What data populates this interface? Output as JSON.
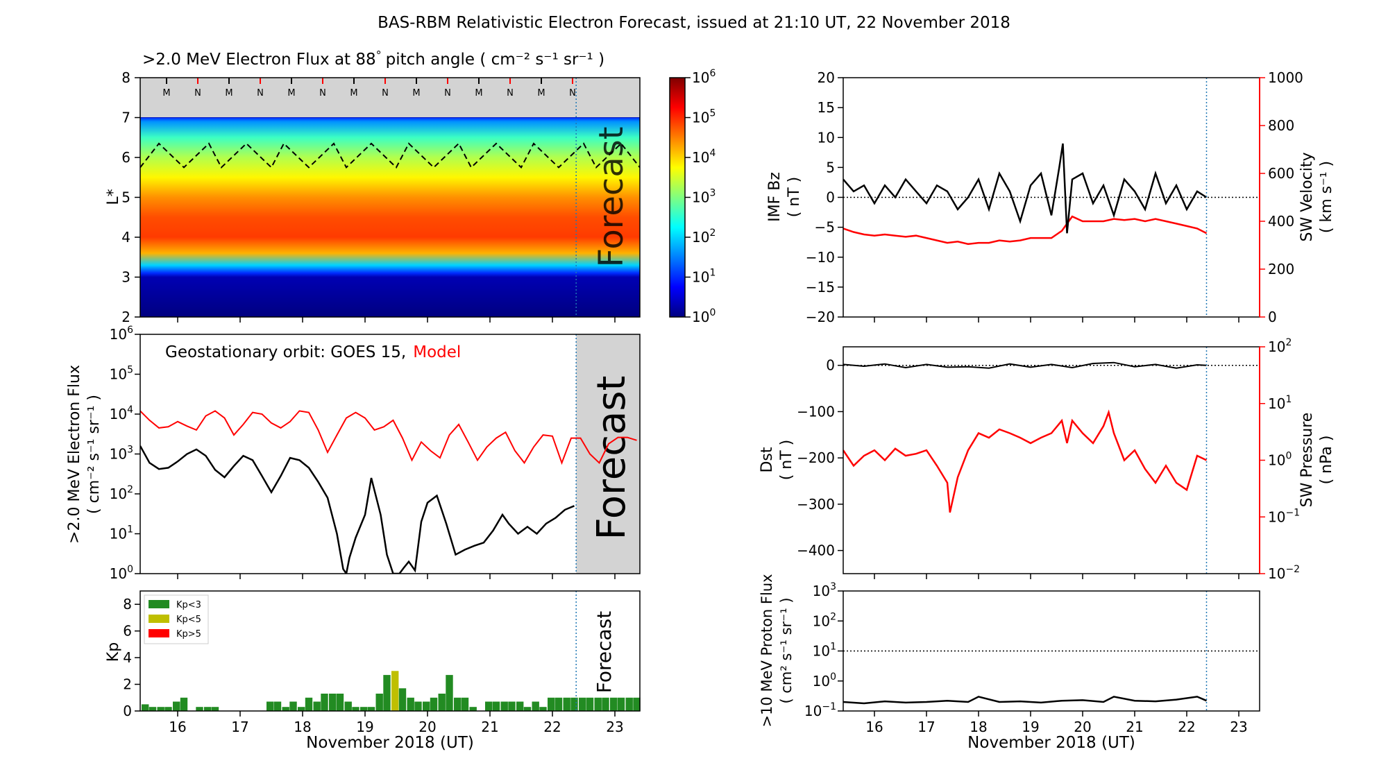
{
  "title": "BAS-RBM Relativistic Electron Forecast, issued at 21:10 UT, 22 November 2018",
  "colors": {
    "model": "#ff0000",
    "observed": "#000000",
    "forecast_shade": "#d3d3d3",
    "forecast_line": "#1f77b4",
    "kp_lt3": "#228B22",
    "kp_lt5": "#bfbf00",
    "kp_gt5": "#ff0000"
  },
  "xaxis": {
    "label": "November 2018 (UT)",
    "range": [
      15.4,
      23.4
    ],
    "ticks": [
      "16",
      "17",
      "18",
      "19",
      "20",
      "21",
      "22",
      "23"
    ],
    "forecast_start": 22.38
  },
  "panels": {
    "flux_map": {
      "title": ">2.0 MeV Electron Flux at 88",
      "title_units": "pitch angle ( cm⁻² s⁻¹ sr⁻¹ )",
      "degree": "°",
      "ylabel": "L*",
      "ylim": [
        2,
        8
      ],
      "yticks": [
        "2",
        "3",
        "4",
        "5",
        "6",
        "7",
        "8"
      ],
      "forecast_label": "Forecast",
      "mn_markers": [
        "M",
        "N",
        "M",
        "N",
        "M",
        "N",
        "M",
        "N",
        "M",
        "N",
        "M",
        "N",
        "M",
        "N"
      ],
      "colorbar": {
        "ticks": [
          "10",
          "10",
          "10",
          "10",
          "10",
          "10",
          "10"
        ],
        "exponents": [
          "0",
          "1",
          "2",
          "3",
          "4",
          "5",
          "6"
        ]
      }
    },
    "geo_flux": {
      "ylabel_line1": ">2.0 MeV Electron Flux",
      "ylabel_line2": "( cm⁻² s⁻¹ sr⁻¹ )",
      "legend_prefix": "Geostationary orbit:   GOES 15,",
      "legend_model": "Model",
      "forecast_label": "Forecast",
      "ytick_base": "10",
      "ytick_exponents": [
        "0",
        "1",
        "2",
        "3",
        "4",
        "5",
        "6"
      ]
    },
    "kp": {
      "ylabel": "Kp",
      "yticks": [
        "0",
        "2",
        "4",
        "6",
        "8"
      ],
      "forecast_label": "Forecast",
      "legend": [
        "Kp<3",
        "Kp<5",
        "Kp>5"
      ]
    },
    "imf": {
      "ylabel_line1": "IMF Bz",
      "ylabel_line2": "( nT )",
      "yticks": [
        "−20",
        "−15",
        "−10",
        "−5",
        "0",
        "5",
        "10",
        "15",
        "20"
      ],
      "ylabel_right_line1": "SW Velocity",
      "ylabel_right_line2": "( km s⁻¹ )",
      "yticks_right": [
        "0",
        "200",
        "400",
        "600",
        "800",
        "1000"
      ]
    },
    "dst": {
      "ylabel_line1": "Dst",
      "ylabel_line2": "( nT )",
      "yticks": [
        "−400",
        "−300",
        "−200",
        "−100",
        "0"
      ],
      "ylabel_right_line1": "SW Pressure",
      "ylabel_right_line2": "( nPa )",
      "ytick_right_base": "10",
      "ytick_right_exponents": [
        "−2",
        "−1",
        "0",
        "1",
        "2"
      ]
    },
    "proton": {
      "ylabel_line1": ">10 MeV Proton Flux",
      "ylabel_line2": "( cm² s⁻¹ sr⁻¹ )",
      "ytick_base": "10",
      "ytick_exponents": [
        "−1",
        "0",
        "1",
        "2",
        "3"
      ]
    }
  },
  "chart_data": [
    {
      "type": "heatmap",
      "title": ">2.0 MeV Electron Flux at 88° pitch angle ( cm⁻² s⁻¹ sr⁻¹ )",
      "ylabel": "L*",
      "xlabel": "November 2018 (UT)",
      "xlim": [
        15.4,
        23.4
      ],
      "ylim": [
        2,
        8
      ],
      "clim_log10": [
        0,
        6
      ],
      "log10_flux_profile": {
        "L": [
          2.0,
          3.0,
          3.1,
          3.3,
          3.6,
          4.0,
          4.5,
          5.0,
          5.5,
          6.0,
          6.5,
          6.9,
          7.0
        ],
        "log10_flux": [
          0.0,
          0.3,
          1.0,
          2.0,
          4.2,
          4.9,
          4.8,
          4.4,
          3.8,
          3.3,
          2.6,
          1.6,
          1.0
        ]
      },
      "no_data_above_L": 7.0,
      "dashed_boundary": {
        "x": [
          15.4,
          15.7,
          16.1,
          16.5,
          16.7,
          17.1,
          17.5,
          17.7,
          18.1,
          18.5,
          18.7,
          19.1,
          19.5,
          19.7,
          20.1,
          20.5,
          20.7,
          21.1,
          21.5,
          21.7,
          22.1,
          22.5,
          22.7,
          23.1,
          23.4
        ],
        "L": [
          5.75,
          6.35,
          5.75,
          6.35,
          5.75,
          6.35,
          5.75,
          6.35,
          5.75,
          6.35,
          5.75,
          6.35,
          5.75,
          6.35,
          5.75,
          6.35,
          5.75,
          6.35,
          5.75,
          6.35,
          5.75,
          6.35,
          5.75,
          6.35,
          5.75
        ]
      }
    },
    {
      "type": "line",
      "ylabel": ">2.0 MeV Electron Flux ( cm⁻² s⁻¹ sr⁻¹ )",
      "yscale": "log",
      "ylim": [
        1,
        1000000
      ],
      "xlim": [
        15.4,
        23.4
      ],
      "series": [
        {
          "name": "Model",
          "x": [
            15.4,
            15.55,
            15.7,
            15.85,
            16.0,
            16.15,
            16.3,
            16.45,
            16.6,
            16.75,
            16.9,
            17.05,
            17.2,
            17.35,
            17.5,
            17.65,
            17.8,
            17.95,
            18.1,
            18.25,
            18.4,
            18.55,
            18.7,
            18.85,
            19.0,
            19.15,
            19.3,
            19.45,
            19.6,
            19.75,
            19.9,
            20.05,
            20.2,
            20.35,
            20.5,
            20.65,
            20.8,
            20.95,
            21.1,
            21.25,
            21.4,
            21.55,
            21.7,
            21.85,
            22.0,
            22.15,
            22.3,
            22.45,
            22.6,
            22.75,
            22.9,
            23.05,
            23.2,
            23.35
          ],
          "y": [
            12000,
            7000,
            4500,
            4800,
            6500,
            5000,
            4000,
            9000,
            12000,
            8000,
            3000,
            5500,
            11000,
            10000,
            6000,
            4500,
            6500,
            12000,
            11000,
            4000,
            1100,
            3000,
            8000,
            11000,
            8000,
            4000,
            4800,
            7000,
            2500,
            700,
            2000,
            1200,
            800,
            3000,
            5500,
            2000,
            700,
            1500,
            2500,
            3500,
            1200,
            600,
            1500,
            3000,
            2800,
            600,
            2500,
            2500,
            1000,
            600,
            1800,
            2600,
            2600,
            2200
          ]
        },
        {
          "name": "GOES 15",
          "x": [
            15.4,
            15.55,
            15.7,
            15.85,
            16.0,
            16.15,
            16.3,
            16.45,
            16.6,
            16.75,
            16.9,
            17.05,
            17.2,
            17.35,
            17.5,
            17.65,
            17.8,
            17.95,
            18.1,
            18.25,
            18.4,
            18.55,
            18.65,
            18.7,
            18.75,
            18.85,
            19.0,
            19.1,
            19.25,
            19.35,
            19.45,
            19.55,
            19.62,
            19.7,
            19.8,
            19.9,
            20.0,
            20.15,
            20.3,
            20.45,
            20.6,
            20.75,
            20.9,
            21.05,
            21.2,
            21.3,
            21.45,
            21.6,
            21.75,
            21.9,
            22.05,
            22.2,
            22.35
          ],
          "y": [
            1600,
            600,
            420,
            450,
            650,
            1000,
            1300,
            900,
            400,
            260,
            500,
            900,
            700,
            280,
            110,
            280,
            800,
            700,
            450,
            200,
            80,
            10,
            1.3,
            1.0,
            2.5,
            8,
            30,
            250,
            30,
            3,
            1.0,
            1.0,
            1.4,
            2.0,
            1.2,
            20,
            60,
            90,
            18,
            3,
            4,
            5,
            6,
            12,
            30,
            18,
            10,
            15,
            10,
            18,
            25,
            40,
            50
          ]
        }
      ]
    },
    {
      "type": "bar",
      "ylabel": "Kp",
      "ylim": [
        0,
        9
      ],
      "xlim": [
        15.4,
        23.4
      ],
      "x": [
        15.48,
        15.6,
        15.73,
        15.85,
        15.98,
        16.1,
        16.23,
        16.35,
        16.48,
        16.6,
        16.73,
        16.85,
        16.98,
        17.1,
        17.23,
        17.35,
        17.48,
        17.6,
        17.73,
        17.85,
        17.98,
        18.1,
        18.23,
        18.35,
        18.48,
        18.6,
        18.73,
        18.85,
        18.98,
        19.1,
        19.23,
        19.35,
        19.48,
        19.6,
        19.73,
        19.85,
        19.98,
        20.1,
        20.23,
        20.35,
        20.48,
        20.6,
        20.73,
        20.85,
        20.98,
        21.1,
        21.23,
        21.35,
        21.48,
        21.6,
        21.73,
        21.85,
        21.98,
        22.1,
        22.23,
        22.35,
        22.48,
        22.6,
        22.73,
        22.85,
        22.98,
        23.1,
        23.23,
        23.35
      ],
      "values": [
        0.5,
        0.3,
        0.3,
        0.3,
        0.7,
        1.0,
        0,
        0.3,
        0.3,
        0.3,
        0,
        0,
        0,
        0,
        0,
        0,
        0.7,
        0.7,
        0.3,
        0.7,
        0.3,
        1.0,
        0.7,
        1.3,
        1.3,
        1.3,
        0.7,
        0.3,
        0.3,
        0.3,
        1.3,
        2.7,
        3.0,
        1.7,
        1.0,
        0.7,
        0.7,
        1.0,
        1.3,
        2.7,
        1.0,
        1.0,
        0.3,
        0,
        0.7,
        0.7,
        0.7,
        0.7,
        0.7,
        0.3,
        0.7,
        0.3,
        1.0,
        1.0,
        1.0,
        1.0,
        1.0,
        1.0,
        1.0,
        1.0,
        1.0,
        1.0,
        1.0,
        1.0
      ],
      "legend": [
        "Kp<3",
        "Kp<5",
        "Kp>5"
      ]
    },
    {
      "type": "line",
      "ylabel": "IMF Bz ( nT )",
      "ylim": [
        -20,
        20
      ],
      "y2label": "SW Velocity ( km s⁻¹ )",
      "y2lim": [
        0,
        1000
      ],
      "xlim": [
        15.4,
        23.4
      ],
      "series": [
        {
          "name": "IMF Bz",
          "x": [
            15.4,
            15.6,
            15.8,
            16.0,
            16.2,
            16.4,
            16.6,
            16.8,
            17.0,
            17.2,
            17.4,
            17.6,
            17.8,
            18.0,
            18.2,
            18.4,
            18.6,
            18.8,
            19.0,
            19.2,
            19.4,
            19.55,
            19.62,
            19.7,
            19.8,
            20.0,
            20.2,
            20.4,
            20.6,
            20.8,
            21.0,
            21.2,
            21.4,
            21.6,
            21.8,
            22.0,
            22.2,
            22.38
          ],
          "y": [
            3,
            1,
            2,
            -1,
            2,
            0,
            3,
            1,
            -1,
            2,
            1,
            -2,
            0,
            3,
            -2,
            4,
            1,
            -4,
            2,
            4,
            -3,
            5,
            9,
            -6,
            3,
            4,
            -1,
            2,
            -3,
            3,
            1,
            -2,
            4,
            -1,
            2,
            -2,
            1,
            0
          ]
        },
        {
          "name": "SW Velocity",
          "x": [
            15.4,
            15.6,
            15.8,
            16.0,
            16.2,
            16.4,
            16.6,
            16.8,
            17.0,
            17.2,
            17.4,
            17.6,
            17.8,
            18.0,
            18.2,
            18.4,
            18.6,
            18.8,
            19.0,
            19.2,
            19.4,
            19.6,
            19.7,
            19.8,
            20.0,
            20.2,
            20.4,
            20.6,
            20.8,
            21.0,
            21.2,
            21.4,
            21.6,
            21.8,
            22.0,
            22.2,
            22.38
          ],
          "y": [
            370,
            355,
            345,
            340,
            345,
            340,
            335,
            340,
            330,
            320,
            310,
            315,
            305,
            310,
            310,
            320,
            315,
            320,
            330,
            330,
            330,
            360,
            390,
            420,
            400,
            400,
            400,
            410,
            405,
            410,
            400,
            410,
            400,
            390,
            380,
            370,
            350
          ]
        }
      ],
      "reference_line_y": 0
    },
    {
      "type": "line",
      "ylabel": "Dst ( nT )",
      "ylim": [
        -450,
        40
      ],
      "y2label": "SW Pressure ( nPa )",
      "y2scale": "log",
      "y2lim": [
        0.01,
        100
      ],
      "xlim": [
        15.4,
        23.4
      ],
      "series": [
        {
          "name": "Dst",
          "x": [
            15.4,
            15.8,
            16.2,
            16.6,
            17.0,
            17.4,
            17.8,
            18.2,
            18.6,
            19.0,
            19.4,
            19.8,
            20.2,
            20.6,
            21.0,
            21.4,
            21.8,
            22.2,
            22.38
          ],
          "y": [
            2,
            -2,
            3,
            -5,
            2,
            -4,
            -3,
            -6,
            3,
            -4,
            2,
            -5,
            4,
            6,
            -3,
            2,
            -6,
            1,
            0
          ]
        },
        {
          "name": "SW Pressure",
          "x": [
            15.4,
            15.6,
            15.8,
            16.0,
            16.2,
            16.4,
            16.6,
            16.8,
            17.0,
            17.2,
            17.4,
            17.45,
            17.6,
            17.8,
            18.0,
            18.2,
            18.4,
            18.6,
            18.8,
            19.0,
            19.2,
            19.4,
            19.6,
            19.7,
            19.8,
            20.0,
            20.2,
            20.4,
            20.5,
            20.6,
            20.8,
            21.0,
            21.2,
            21.4,
            21.6,
            21.8,
            22.0,
            22.2,
            22.38
          ],
          "y": [
            1.5,
            0.8,
            1.2,
            1.5,
            1.0,
            1.6,
            1.2,
            1.3,
            1.5,
            0.8,
            0.4,
            0.12,
            0.5,
            1.5,
            3.0,
            2.5,
            3.5,
            3.0,
            2.5,
            2.0,
            2.5,
            3.0,
            5.0,
            2.0,
            5.0,
            3.0,
            2.0,
            4.0,
            7.0,
            3.0,
            1.0,
            1.5,
            0.7,
            0.4,
            0.8,
            0.4,
            0.3,
            1.2,
            1.0
          ]
        }
      ],
      "reference_line_y": 0
    },
    {
      "type": "line",
      "ylabel": ">10 MeV Proton Flux ( cm² s⁻¹ sr⁻¹ )",
      "yscale": "log",
      "ylim": [
        0.1,
        1000
      ],
      "xlim": [
        15.4,
        23.4
      ],
      "series": [
        {
          "name": "Proton Flux",
          "x": [
            15.4,
            15.8,
            16.2,
            16.6,
            17.0,
            17.4,
            17.8,
            18.0,
            18.4,
            18.8,
            19.2,
            19.6,
            20.0,
            20.4,
            20.6,
            21.0,
            21.4,
            21.8,
            22.2,
            22.38
          ],
          "y": [
            0.2,
            0.18,
            0.21,
            0.19,
            0.2,
            0.22,
            0.2,
            0.3,
            0.2,
            0.21,
            0.19,
            0.22,
            0.23,
            0.2,
            0.3,
            0.22,
            0.21,
            0.24,
            0.3,
            0.22
          ]
        }
      ],
      "reference_line_y": 10
    }
  ]
}
